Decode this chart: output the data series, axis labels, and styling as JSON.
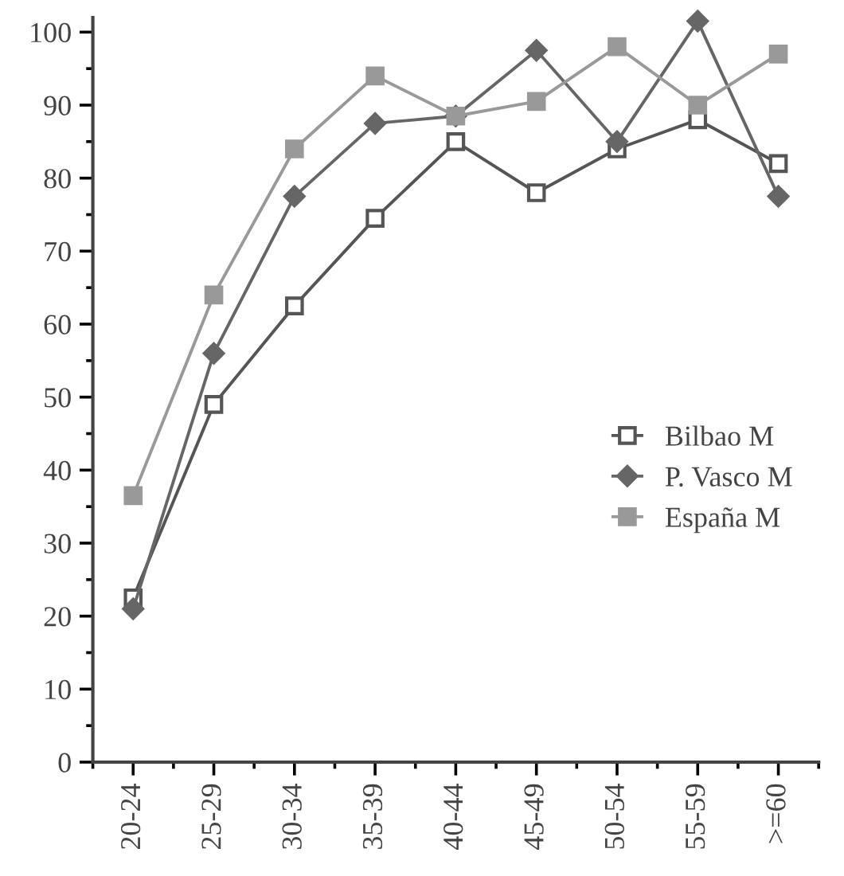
{
  "chart_data": {
    "type": "line",
    "categories": [
      "20-24",
      "25-29",
      "30-34",
      "35-39",
      "40-44",
      "45-49",
      "50-54",
      "55-59",
      ">=60"
    ],
    "series": [
      {
        "name": "Bilbao M",
        "color": "#555555",
        "marker": "square",
        "values": [
          22.5,
          49,
          62.5,
          74.5,
          85,
          78,
          84,
          88,
          82
        ]
      },
      {
        "name": "P. Vasco M",
        "color": "#666666",
        "marker": "diamond",
        "values": [
          21,
          56,
          77.5,
          87.5,
          88.5,
          97.5,
          85,
          101.5,
          77.5
        ]
      },
      {
        "name": "España M",
        "color": "#999999",
        "marker": "square",
        "values": [
          36.5,
          64,
          84,
          94,
          88.5,
          90.5,
          98,
          90,
          97
        ]
      }
    ],
    "ylim": [
      0,
      102
    ],
    "yticks": [
      0,
      10,
      20,
      30,
      40,
      50,
      60,
      70,
      80,
      90,
      100
    ],
    "grid": false,
    "legend": "right",
    "line_style": "solid"
  }
}
